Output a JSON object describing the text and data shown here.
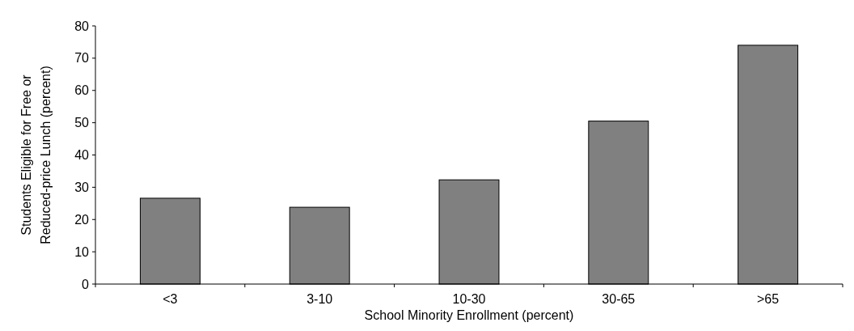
{
  "chart_data": {
    "type": "bar",
    "xlabel": "School Minority Enrollment (percent)",
    "ylabel": "Students Eligible for Free or Reduced-price Lunch (percent)",
    "categories": [
      "<3",
      "3-10",
      "10-30",
      "30-65",
      ">65"
    ],
    "values": [
      26.6,
      23.8,
      32.3,
      50.5,
      74
    ],
    "color": "#808080",
    "ylim": [
      0,
      80
    ],
    "yticks": [
      0,
      10,
      20,
      30,
      40,
      50,
      60,
      70,
      80
    ],
    "grid": false
  }
}
